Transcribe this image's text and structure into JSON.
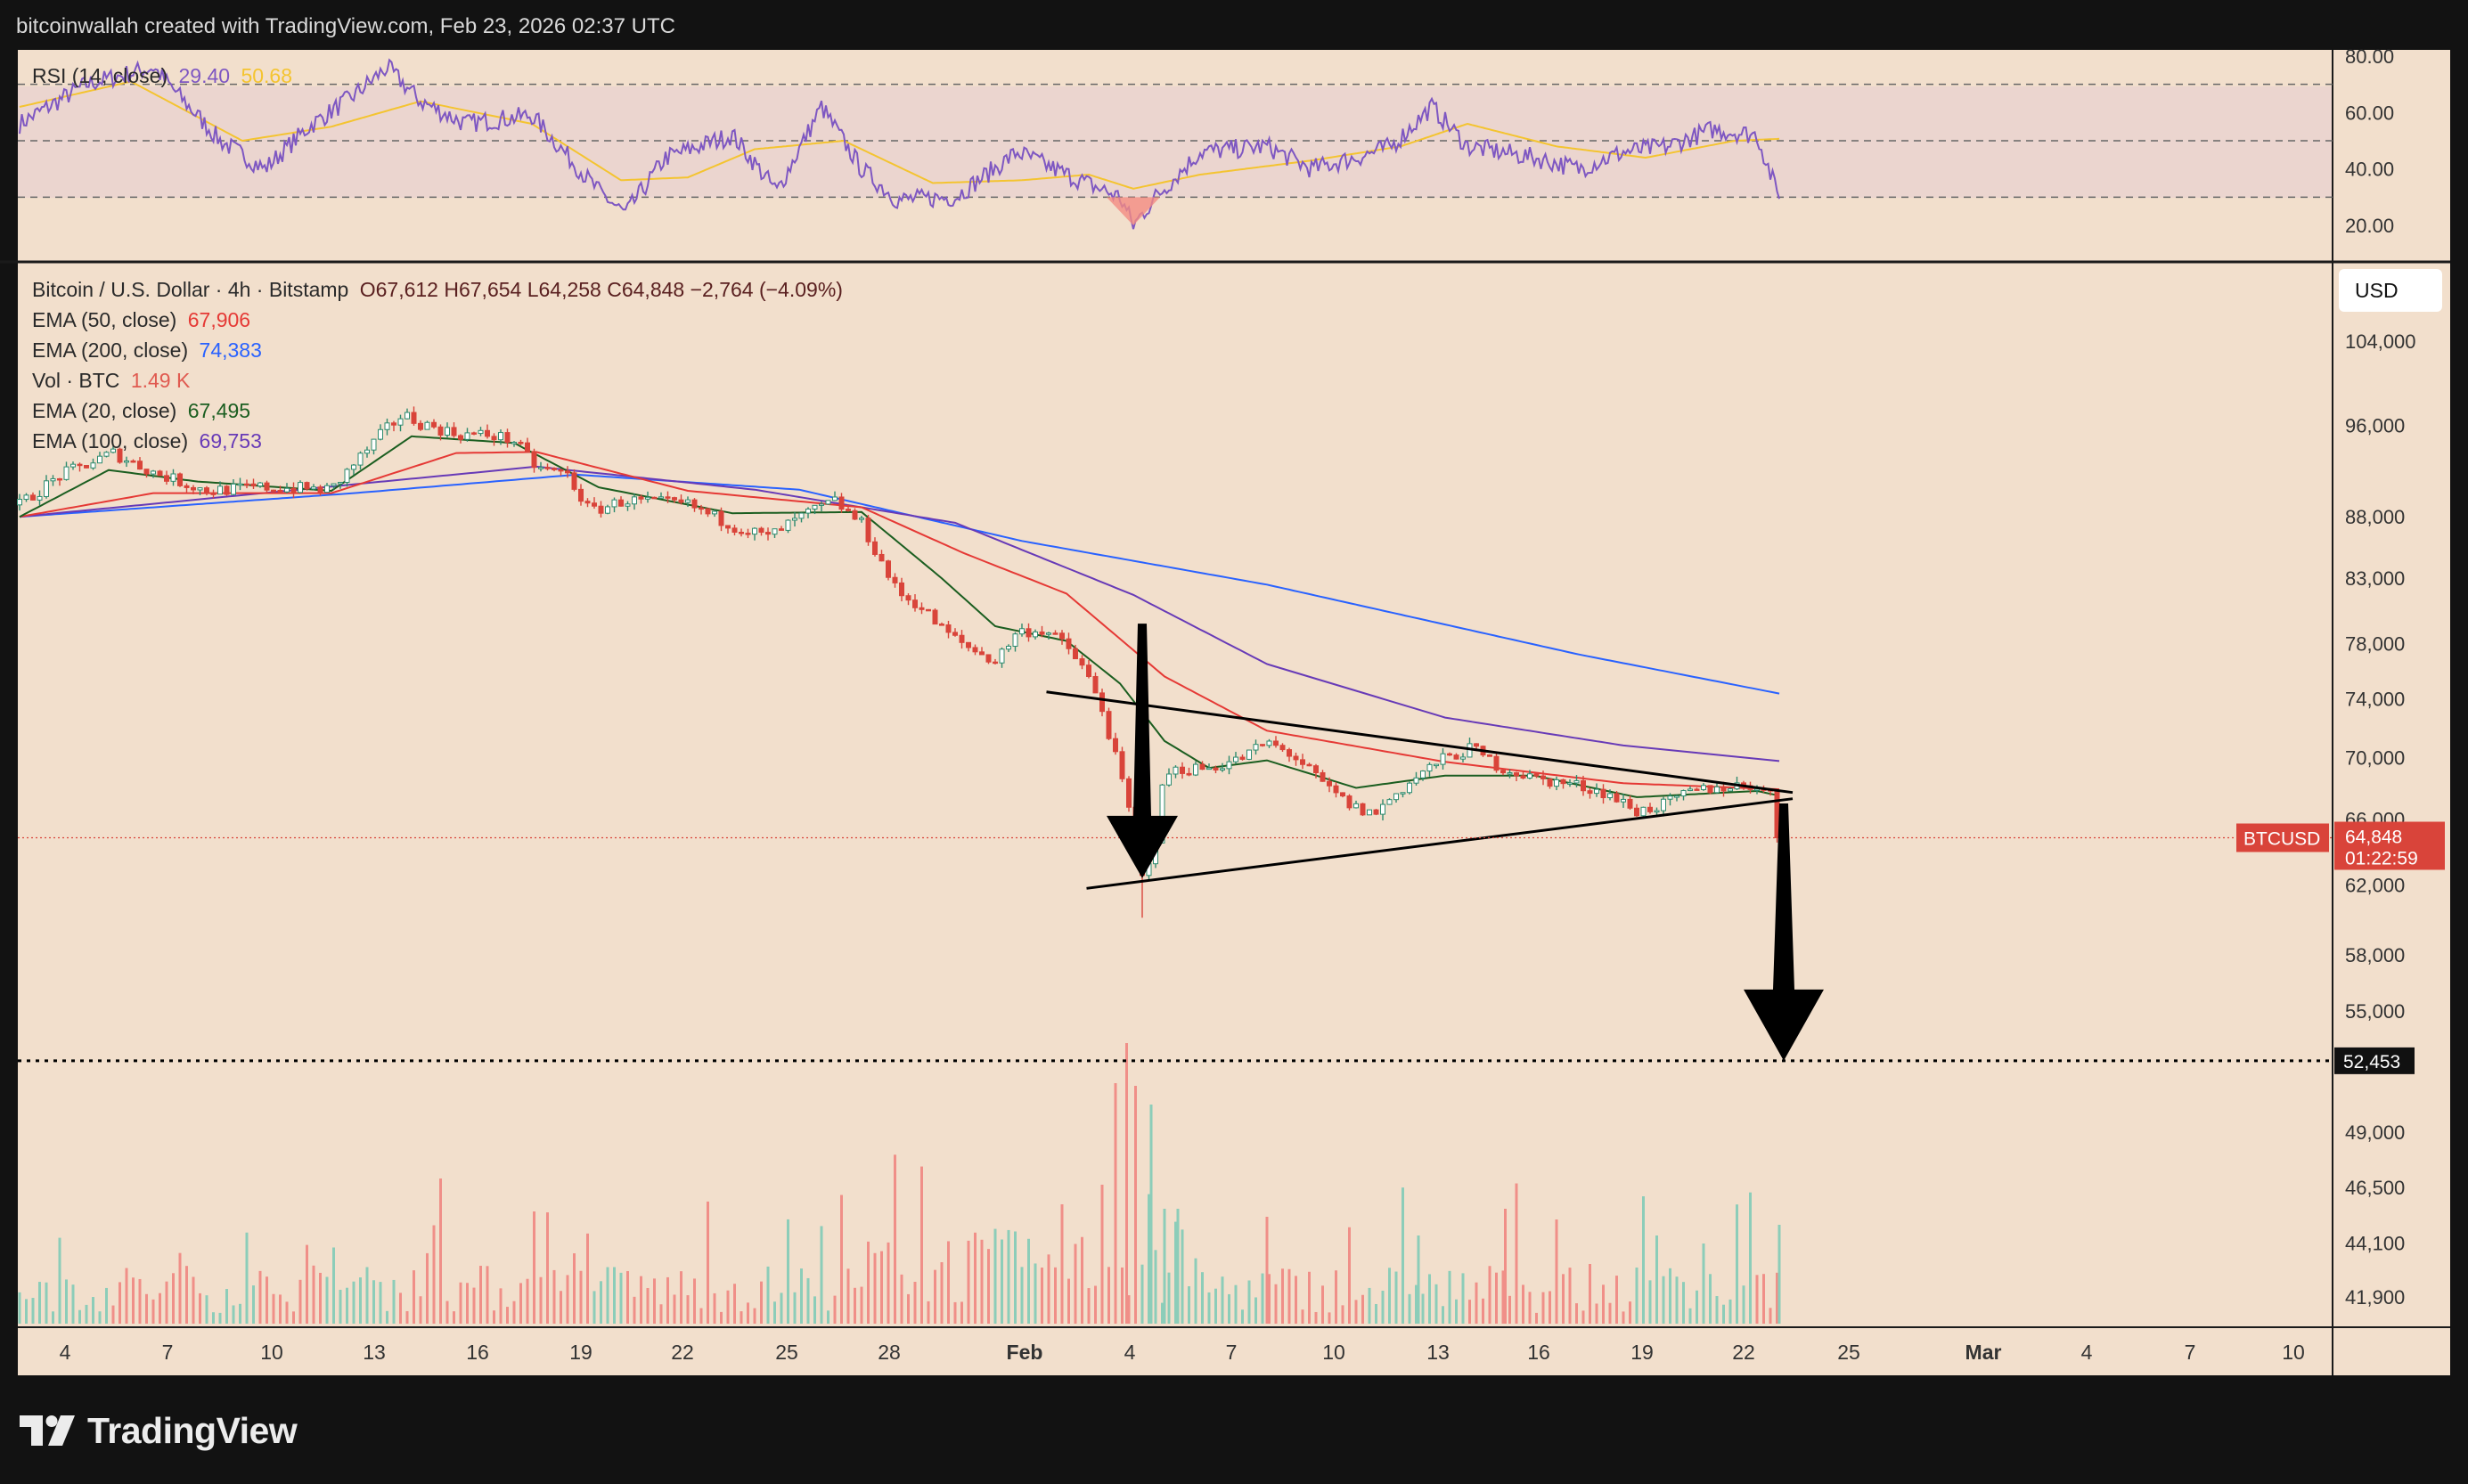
{
  "header": {
    "attribution": "bitcoinwallah created with TradingView.com, Feb 23, 2026 02:37 UTC"
  },
  "brand": {
    "name": "TradingView"
  },
  "axis": {
    "currency": "USD"
  },
  "legend": {
    "symbol": "Bitcoin / U.S. Dollar · 4h · Bitstamp",
    "ohlc": "O67,612  H67,654  L64,258  C64,848  −2,764 (−4.09%)",
    "ema50": {
      "label": "EMA (50, close)",
      "value": "67,906"
    },
    "ema200": {
      "label": "EMA (200, close)",
      "value": "74,383"
    },
    "vol": {
      "label": "Vol · BTC",
      "value": "1.49 K"
    },
    "ema20": {
      "label": "EMA (20, close)",
      "value": "67,495"
    },
    "ema100": {
      "label": "EMA (100, close)",
      "value": "69,753"
    },
    "rsi": {
      "label": "RSI (14, close)",
      "value": "29.40",
      "ma_value": "50.68"
    }
  },
  "colors": {
    "up": "#2e8b6e",
    "down": "#d9443a",
    "vol_up": "#8ccdb9",
    "vol_down": "#f08f88",
    "ema20": "#1b5e20",
    "ema50": "#e53935",
    "ema100": "#673ab7",
    "ema200": "#2962ff",
    "rsi": "#7e57c2",
    "rsi_ma": "#f4c430",
    "price_label": "#d9443a",
    "target_label": "#111111"
  },
  "chart_data": {
    "type": "candlestick",
    "symbol": "BTCUSD",
    "timeframe": "4h",
    "price_scale": "log",
    "price_axis_ticks": [
      104000,
      96000,
      88000,
      83000,
      78000,
      74000,
      70000,
      66000,
      62000,
      58000,
      55000,
      52453,
      49000,
      46500,
      44100,
      41900
    ],
    "rsi_axis_ticks": [
      80,
      60,
      40,
      20
    ],
    "rsi_axis_labels": [
      "80.00",
      "60.00",
      "40.00",
      "20.00"
    ],
    "rsi_levels": [
      70,
      50,
      30
    ],
    "time_axis_labels": [
      "4",
      "7",
      "10",
      "13",
      "16",
      "19",
      "22",
      "25",
      "28",
      "Feb",
      "4",
      "7",
      "10",
      "13",
      "16",
      "19",
      "22",
      "25",
      "Mar",
      "4",
      "7",
      "10"
    ],
    "close_path": [
      [
        0,
        89000
      ],
      [
        18,
        91500
      ],
      [
        42,
        93500
      ],
      [
        60,
        91800
      ],
      [
        84,
        90200
      ],
      [
        108,
        90500
      ],
      [
        126,
        90400
      ],
      [
        140,
        90300
      ],
      [
        150,
        92500
      ],
      [
        164,
        95500
      ],
      [
        172,
        97000
      ],
      [
        180,
        96200
      ],
      [
        196,
        95200
      ],
      [
        212,
        95100
      ],
      [
        222,
        94600
      ],
      [
        232,
        92200
      ],
      [
        246,
        91600
      ],
      [
        256,
        88400
      ],
      [
        272,
        89400
      ],
      [
        300,
        89000
      ],
      [
        320,
        87300
      ],
      [
        336,
        86300
      ],
      [
        352,
        88100
      ],
      [
        366,
        89300
      ],
      [
        378,
        87400
      ],
      [
        386,
        84600
      ],
      [
        394,
        81900
      ],
      [
        404,
        80900
      ],
      [
        414,
        79100
      ],
      [
        424,
        77900
      ],
      [
        438,
        76700
      ],
      [
        448,
        78900
      ],
      [
        460,
        79000
      ],
      [
        470,
        77800
      ],
      [
        478,
        76100
      ],
      [
        486,
        73300
      ],
      [
        494,
        68900
      ],
      [
        500,
        65500
      ],
      [
        504,
        62400
      ],
      [
        510,
        64800
      ],
      [
        514,
        68900
      ],
      [
        520,
        69200
      ],
      [
        534,
        69300
      ],
      [
        548,
        69900
      ],
      [
        560,
        71000
      ],
      [
        572,
        70100
      ],
      [
        586,
        68100
      ],
      [
        598,
        66800
      ],
      [
        608,
        66300
      ],
      [
        616,
        67400
      ],
      [
        628,
        68800
      ],
      [
        638,
        69800
      ],
      [
        652,
        70600
      ],
      [
        664,
        69400
      ],
      [
        680,
        68600
      ],
      [
        698,
        68200
      ],
      [
        712,
        67700
      ],
      [
        726,
        66500
      ],
      [
        738,
        66900
      ],
      [
        752,
        67800
      ],
      [
        766,
        68100
      ],
      [
        780,
        68200
      ],
      [
        786,
        67500
      ],
      [
        790,
        64848
      ]
    ],
    "ema20_path": [
      [
        0,
        88000
      ],
      [
        40,
        92000
      ],
      [
        80,
        91000
      ],
      [
        140,
        90200
      ],
      [
        176,
        95000
      ],
      [
        222,
        94400
      ],
      [
        260,
        90500
      ],
      [
        320,
        88300
      ],
      [
        378,
        88400
      ],
      [
        414,
        83000
      ],
      [
        438,
        79300
      ],
      [
        470,
        78200
      ],
      [
        494,
        75100
      ],
      [
        514,
        71100
      ],
      [
        534,
        69300
      ],
      [
        560,
        69800
      ],
      [
        600,
        68000
      ],
      [
        640,
        68800
      ],
      [
        680,
        68800
      ],
      [
        726,
        67400
      ],
      [
        780,
        67800
      ],
      [
        790,
        67495
      ]
    ],
    "ema50_path": [
      [
        0,
        88000
      ],
      [
        60,
        90000
      ],
      [
        140,
        90000
      ],
      [
        196,
        93500
      ],
      [
        232,
        93600
      ],
      [
        300,
        90200
      ],
      [
        378,
        88800
      ],
      [
        424,
        85000
      ],
      [
        470,
        81800
      ],
      [
        514,
        75600
      ],
      [
        560,
        71800
      ],
      [
        640,
        69700
      ],
      [
        720,
        68300
      ],
      [
        790,
        67906
      ]
    ],
    "ema100_path": [
      [
        0,
        88000
      ],
      [
        120,
        90200
      ],
      [
        232,
        92300
      ],
      [
        330,
        90300
      ],
      [
        420,
        87500
      ],
      [
        500,
        81700
      ],
      [
        560,
        76500
      ],
      [
        640,
        72700
      ],
      [
        720,
        70800
      ],
      [
        790,
        69753
      ]
    ],
    "ema200_path": [
      [
        0,
        88000
      ],
      [
        150,
        90000
      ],
      [
        250,
        91600
      ],
      [
        350,
        90300
      ],
      [
        450,
        86000
      ],
      [
        560,
        82500
      ],
      [
        700,
        77200
      ],
      [
        790,
        74383
      ]
    ],
    "rsi_path": [
      [
        0,
        56
      ],
      [
        30,
        70
      ],
      [
        60,
        76
      ],
      [
        90,
        50
      ],
      [
        110,
        40
      ],
      [
        130,
        55
      ],
      [
        150,
        66
      ],
      [
        165,
        76
      ],
      [
        180,
        64
      ],
      [
        200,
        56
      ],
      [
        230,
        59
      ],
      [
        260,
        32
      ],
      [
        272,
        24
      ],
      [
        290,
        44
      ],
      [
        320,
        52
      ],
      [
        340,
        32
      ],
      [
        360,
        62
      ],
      [
        378,
        40
      ],
      [
        394,
        29
      ],
      [
        420,
        30
      ],
      [
        448,
        46
      ],
      [
        470,
        38
      ],
      [
        494,
        30
      ],
      [
        500,
        20
      ],
      [
        510,
        30
      ],
      [
        530,
        46
      ],
      [
        560,
        48
      ],
      [
        580,
        40
      ],
      [
        600,
        44
      ],
      [
        616,
        48
      ],
      [
        634,
        62
      ],
      [
        650,
        48
      ],
      [
        680,
        44
      ],
      [
        700,
        40
      ],
      [
        720,
        46
      ],
      [
        740,
        48
      ],
      [
        760,
        54
      ],
      [
        780,
        52
      ],
      [
        790,
        29.4
      ]
    ],
    "rsi_ma_path": [
      [
        0,
        62
      ],
      [
        50,
        71
      ],
      [
        100,
        50
      ],
      [
        140,
        55
      ],
      [
        180,
        64
      ],
      [
        230,
        56
      ],
      [
        270,
        36
      ],
      [
        300,
        37
      ],
      [
        330,
        47
      ],
      [
        370,
        50
      ],
      [
        410,
        35
      ],
      [
        450,
        36
      ],
      [
        480,
        38
      ],
      [
        500,
        33
      ],
      [
        530,
        38
      ],
      [
        580,
        43
      ],
      [
        620,
        48
      ],
      [
        650,
        56
      ],
      [
        690,
        48
      ],
      [
        730,
        44
      ],
      [
        770,
        50
      ],
      [
        790,
        50.68
      ]
    ],
    "volume_spikes": [
      [
        486,
        520
      ],
      [
        492,
        900
      ],
      [
        497,
        1050
      ],
      [
        501,
        890
      ],
      [
        508,
        820
      ],
      [
        514,
        430
      ],
      [
        520,
        430
      ],
      [
        560,
        400
      ],
      [
        628,
        330
      ],
      [
        667,
        430
      ],
      [
        690,
        390
      ],
      [
        735,
        330
      ],
      [
        756,
        300
      ],
      [
        790,
        370
      ]
    ],
    "triangle": {
      "upper_trendline": [
        [
          461,
          74500
        ],
        [
          796,
          67700
        ]
      ],
      "lower_trendline": [
        [
          479,
          61800
        ],
        [
          796,
          67300
        ]
      ]
    },
    "breakdown_target": 52453,
    "last_price": 64848,
    "last_price_label": "64,848",
    "last_price_countdown": "01:22:59",
    "symbol_tag": "BTCUSD",
    "target_label": "52,453",
    "annotations": [
      "Down arrow on early February sell-off toward ~62,000",
      "Down arrow from the triangle breakdown toward the 52,453 target"
    ]
  }
}
